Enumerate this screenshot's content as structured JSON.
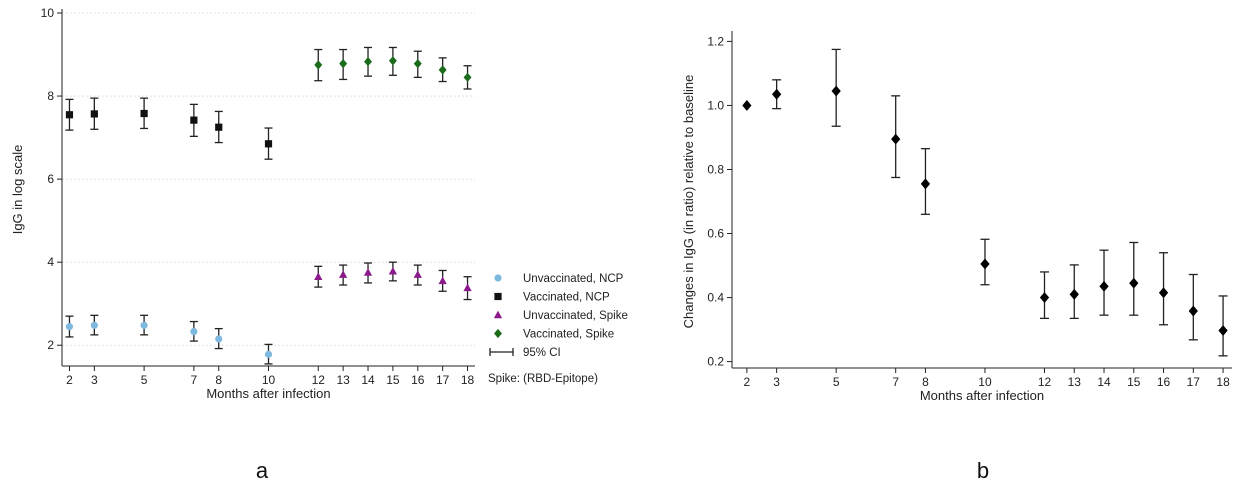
{
  "chart_data": [
    {
      "type": "scatter",
      "panel_label": "a",
      "xlabel": "Months after infection",
      "ylabel": "IgG in log scale",
      "x_ticks": [
        2,
        3,
        5,
        7,
        8,
        10,
        12,
        13,
        14,
        15,
        16,
        17,
        18
      ],
      "y_ticks": [
        2,
        4,
        6,
        8,
        10
      ],
      "xlim": [
        1.7,
        18.3
      ],
      "ylim": [
        1.5,
        10
      ],
      "grid": "dotted horizontal",
      "legend_position": "right",
      "legend_note": "Spike: (RBD-Epitope)",
      "ci_legend_label": "95% CI",
      "series": [
        {
          "name": "Unvaccinated, NCP",
          "marker": "circle",
          "color": "#7fb9e0",
          "x": [
            2,
            3,
            5,
            7,
            8,
            10
          ],
          "y": [
            2.45,
            2.48,
            2.48,
            2.33,
            2.15,
            1.78
          ],
          "lower": [
            2.2,
            2.25,
            2.25,
            2.1,
            1.92,
            1.55
          ],
          "upper": [
            2.7,
            2.72,
            2.72,
            2.57,
            2.4,
            2.02
          ]
        },
        {
          "name": "Vaccinated, NCP",
          "marker": "square",
          "color": "#111111",
          "x": [
            2,
            3,
            5,
            7,
            8,
            10
          ],
          "y": [
            7.55,
            7.57,
            7.58,
            7.42,
            7.25,
            6.85
          ],
          "lower": [
            7.18,
            7.2,
            7.22,
            7.03,
            6.88,
            6.48
          ],
          "upper": [
            7.92,
            7.95,
            7.95,
            7.8,
            7.63,
            7.23
          ]
        },
        {
          "name": "Unvaccinated, Spike",
          "marker": "triangle",
          "color": "#8b1a8b",
          "x": [
            12,
            13,
            14,
            15,
            16,
            17,
            18
          ],
          "y": [
            3.65,
            3.7,
            3.75,
            3.78,
            3.7,
            3.55,
            3.38
          ],
          "lower": [
            3.4,
            3.45,
            3.5,
            3.55,
            3.45,
            3.3,
            3.1
          ],
          "upper": [
            3.9,
            3.93,
            3.98,
            4.0,
            3.93,
            3.8,
            3.65
          ]
        },
        {
          "name": "Vaccinated, Spike",
          "marker": "diamond",
          "color": "#1a6b1a",
          "x": [
            12,
            13,
            14,
            15,
            16,
            17,
            18
          ],
          "y": [
            8.75,
            8.78,
            8.83,
            8.85,
            8.78,
            8.63,
            8.45
          ],
          "lower": [
            8.37,
            8.4,
            8.48,
            8.5,
            8.45,
            8.35,
            8.17
          ],
          "upper": [
            9.12,
            9.12,
            9.17,
            9.17,
            9.08,
            8.92,
            8.73
          ]
        }
      ]
    },
    {
      "type": "scatter",
      "panel_label": "b",
      "xlabel": "Months after infection",
      "ylabel": "Changes in IgG (in ratio) relative to baseline",
      "x_ticks": [
        2,
        3,
        5,
        7,
        8,
        10,
        12,
        13,
        14,
        15,
        16,
        17,
        18
      ],
      "y_ticks": [
        0.2,
        0.4,
        0.6,
        0.8,
        1.0,
        1.2
      ],
      "xlim": [
        1.5,
        18.3
      ],
      "ylim": [
        0.18,
        1.22
      ],
      "grid": "none",
      "series": [
        {
          "marker": "diamond",
          "color": "#000000",
          "x": [
            2,
            3,
            5,
            7,
            8,
            10,
            12,
            13,
            14,
            15,
            16,
            17,
            18
          ],
          "y": [
            1.0,
            1.035,
            1.045,
            0.895,
            0.755,
            0.505,
            0.4,
            0.41,
            0.435,
            0.445,
            0.415,
            0.358,
            0.297
          ],
          "lower": [
            1.0,
            0.99,
            0.935,
            0.775,
            0.66,
            0.44,
            0.335,
            0.335,
            0.345,
            0.345,
            0.315,
            0.268,
            0.218
          ],
          "upper": [
            1.0,
            1.08,
            1.175,
            1.03,
            0.865,
            0.582,
            0.48,
            0.502,
            0.548,
            0.572,
            0.54,
            0.472,
            0.405
          ]
        }
      ]
    }
  ]
}
